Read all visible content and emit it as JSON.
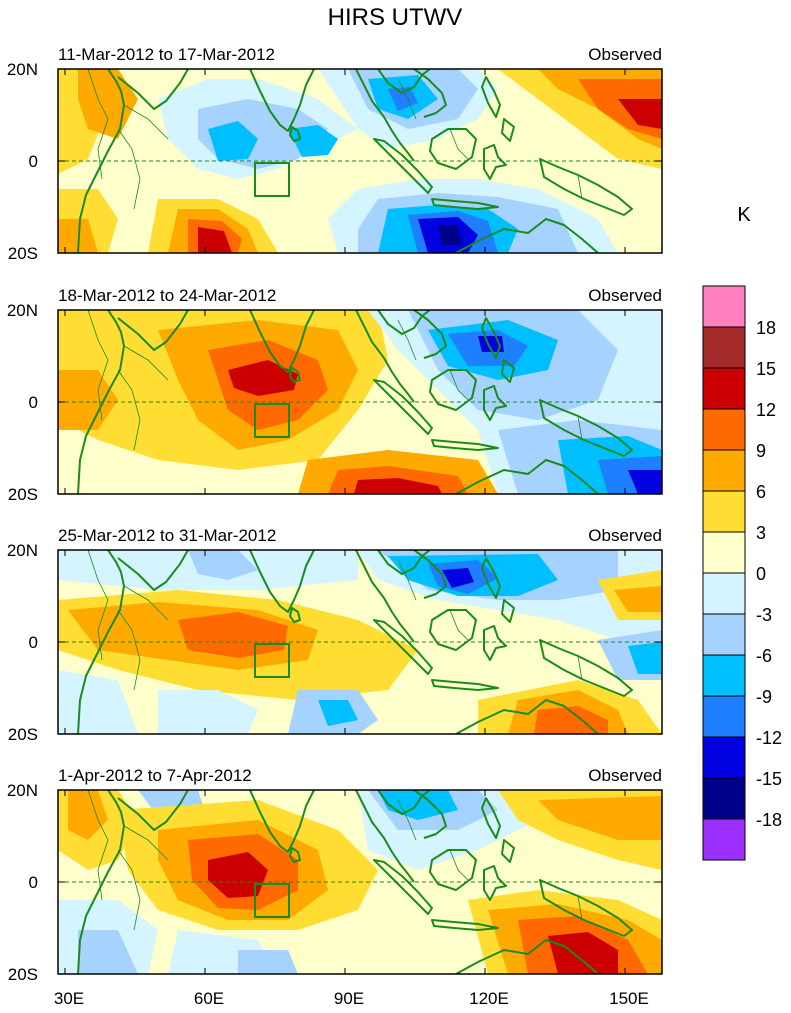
{
  "title": "HIRS UTWV",
  "panels": [
    {
      "date_range": "11-Mar-2012 to 17-Mar-2012",
      "label": "Observed"
    },
    {
      "date_range": "18-Mar-2012 to 24-Mar-2012",
      "label": "Observed"
    },
    {
      "date_range": "25-Mar-2012 to 31-Mar-2012",
      "label": "Observed"
    },
    {
      "date_range": "1-Apr-2012 to 7-Apr-2012",
      "label": "Observed"
    }
  ],
  "lat_labels": [
    "20N",
    "0",
    "20S"
  ],
  "lon_labels": [
    "30E",
    "60E",
    "90E",
    "120E",
    "150E"
  ],
  "colorbar": {
    "unit": "K",
    "tick_labels": [
      "18",
      "15",
      "12",
      "9",
      "6",
      "3",
      "0",
      "-3",
      "-6",
      "-9",
      "-12",
      "-15",
      "-18"
    ],
    "colors_top_to_bottom": [
      "#ff7fbf",
      "#a52a2a",
      "#cc0000",
      "#ff6a00",
      "#ffaa00",
      "#ffdd33",
      "#ffffcc",
      "#d4f4ff",
      "#a6d2ff",
      "#00bfff",
      "#1e7fff",
      "#0000e0",
      "#00008b",
      "#9b30ff"
    ]
  },
  "colors": {
    "coast": "#1a8c1a",
    "box": "#1a8c1a",
    "equator": "#1a8c1a"
  }
}
